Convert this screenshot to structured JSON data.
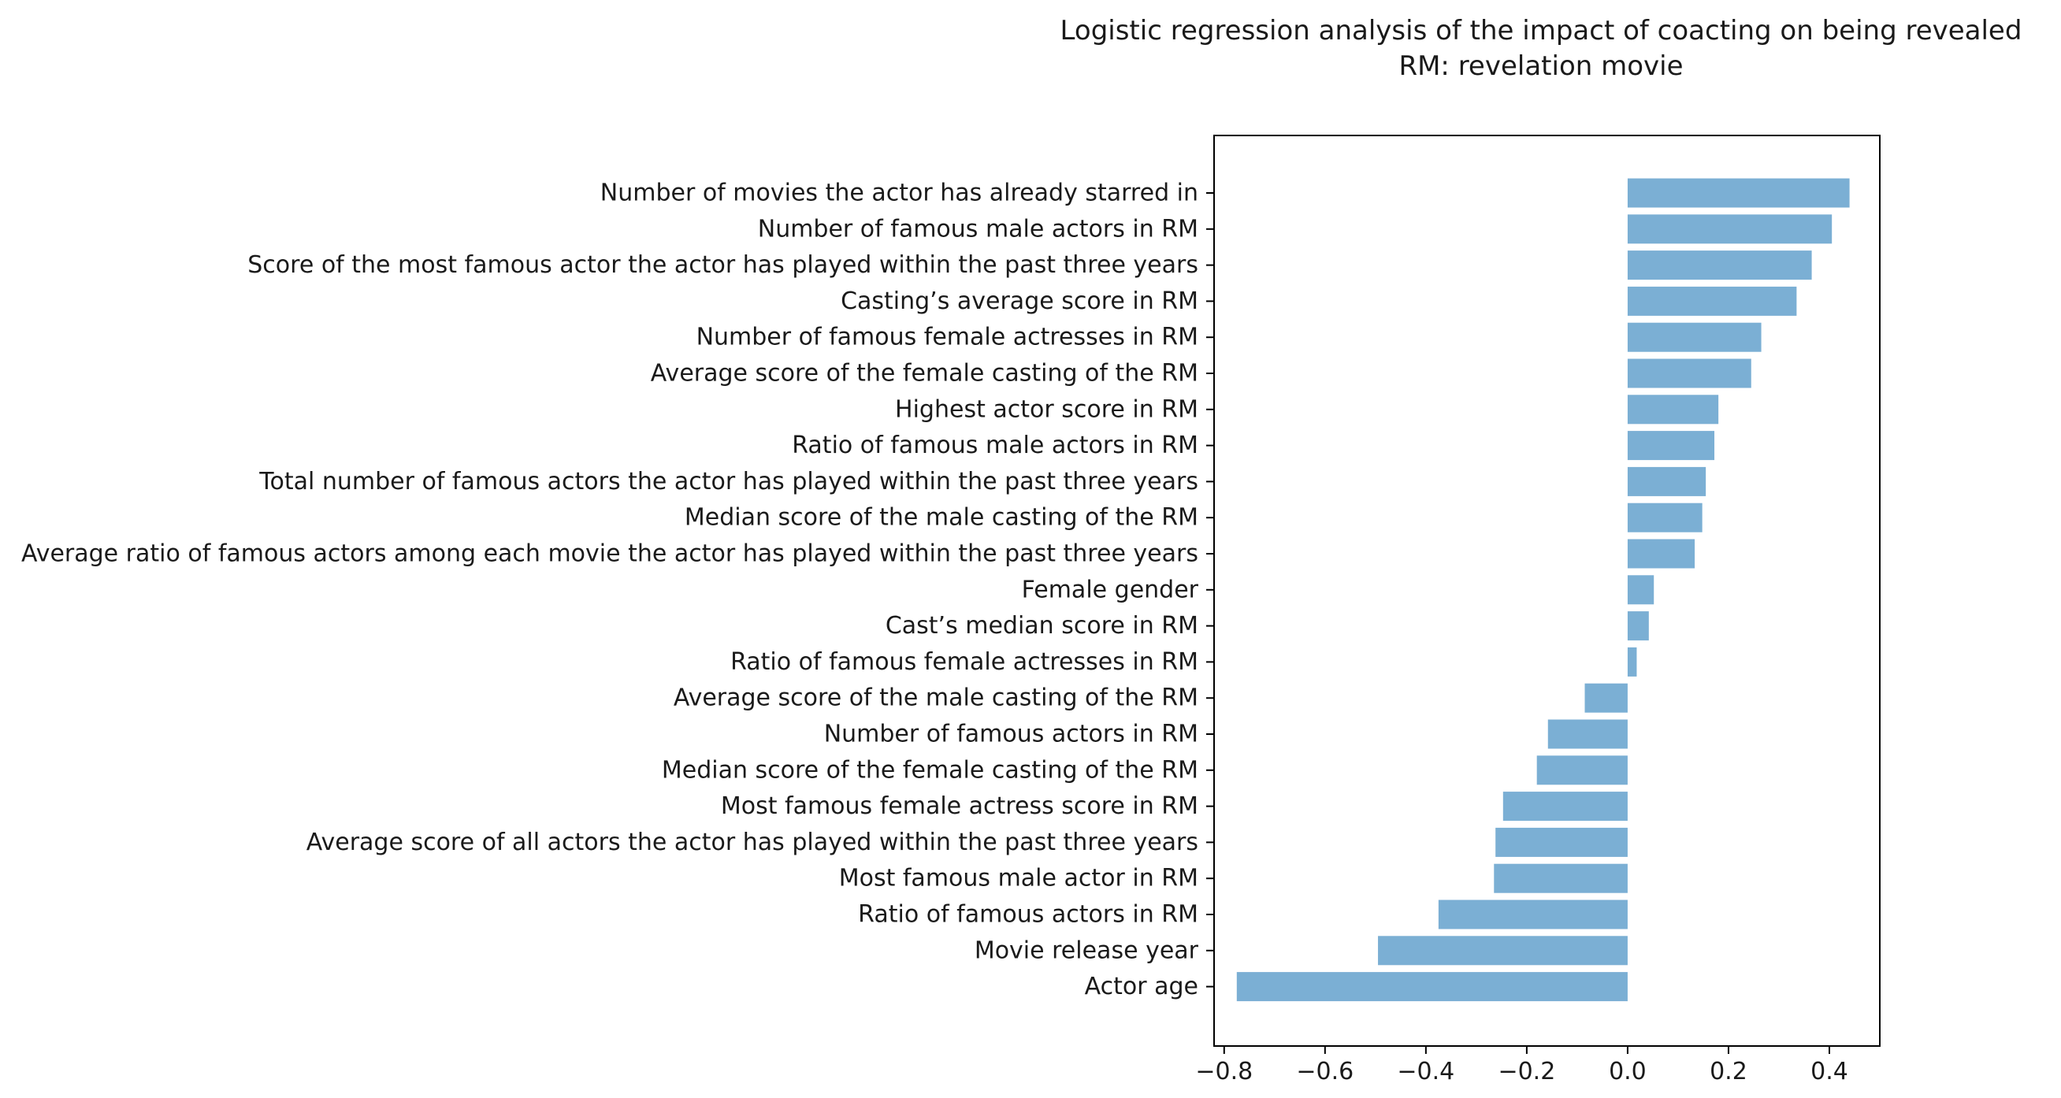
{
  "chart_data": {
    "type": "bar",
    "orientation": "horizontal",
    "title": "Logistic regression analysis of the impact of coacting on being revealed",
    "subtitle": "RM: revelation movie",
    "xlabel": "",
    "ylabel": "",
    "xlim": [
      -0.82,
      0.5
    ],
    "xticks": [
      -0.8,
      -0.6,
      -0.4,
      -0.2,
      0.0,
      0.2,
      0.4
    ],
    "xtick_labels": [
      "−0.8",
      "−0.6",
      "−0.4",
      "−0.2",
      "0.0",
      "0.2",
      "0.4"
    ],
    "grid": false,
    "bar_color": "#7bafd4",
    "categories": [
      "Number of movies the actor has already starred in",
      "Number of famous male actors in RM",
      "Score of the most famous actor the actor has played within the past three years",
      "Casting’s average score in RM",
      "Number of famous female actresses in RM",
      "Average score of the female casting of the RM",
      "Highest actor score in RM",
      "Ratio of famous male actors in RM",
      "Total number of famous actors the actor has played within the past three years",
      "Median score of the male casting of the RM",
      "Average ratio of famous actors among each movie the actor has played within the past three years",
      "Female gender",
      "Cast’s median score in RM",
      "Ratio of famous female actresses in RM",
      "Average score of the male casting of the RM",
      "Number of famous actors in RM",
      "Median score of the female casting of the RM",
      "Most famous female actress score in RM",
      "Average score of all actors the actor has played within the past three years",
      "Most famous male actor in RM",
      "Ratio of famous actors in RM",
      "Movie release year",
      "Actor age"
    ],
    "values": [
      0.44,
      0.405,
      0.365,
      0.335,
      0.265,
      0.245,
      0.18,
      0.172,
      0.155,
      0.148,
      0.133,
      0.052,
      0.042,
      0.018,
      -0.085,
      -0.158,
      -0.18,
      -0.247,
      -0.262,
      -0.265,
      -0.375,
      -0.495,
      -0.775
    ]
  }
}
